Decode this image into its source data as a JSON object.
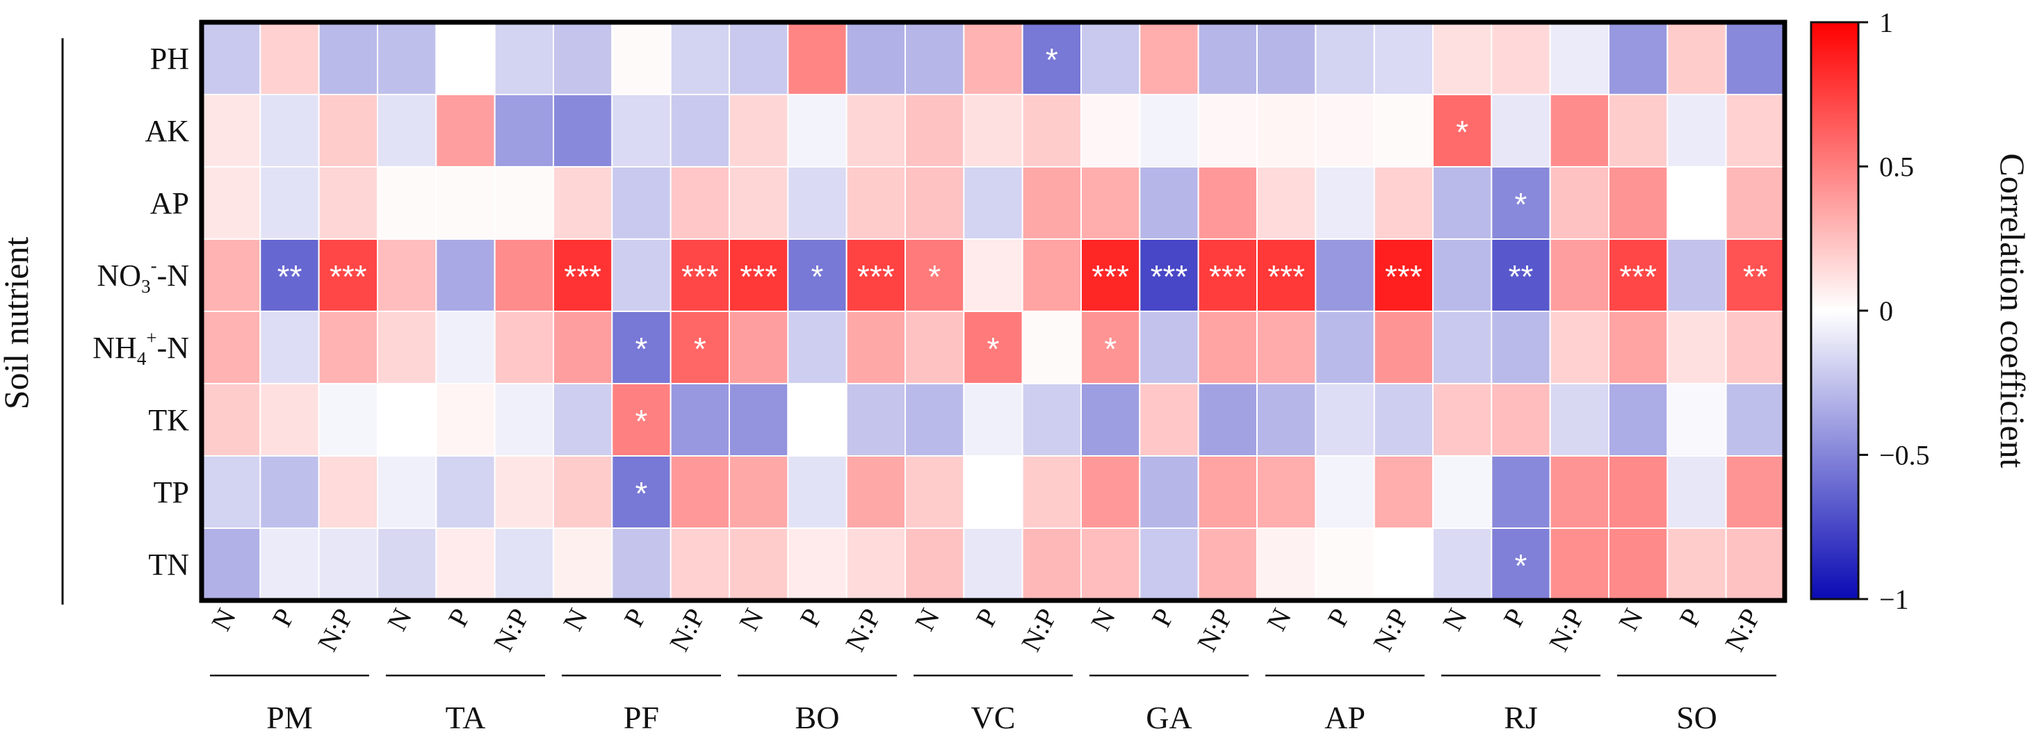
{
  "chart_data": {
    "type": "heatmap",
    "ylabel": "Soil nutrient",
    "colorbar_label": "Correlation coefficient",
    "colorbar_ticks": [
      "1",
      "0.5",
      "0",
      "−0.5",
      "−1"
    ],
    "value_range": [
      -1,
      1
    ],
    "colors": {
      "neg": "#0a0ab4",
      "mid": "#ffffff",
      "pos": "#ff0000"
    },
    "rows": [
      "PH",
      "AK",
      "AP",
      "NO3-N",
      "NH4-N",
      "TK",
      "TP",
      "TN"
    ],
    "row_labels_rich": [
      {
        "main": "PH"
      },
      {
        "main": "AK"
      },
      {
        "main": "AP"
      },
      {
        "main": "NO",
        "sub": "3",
        "sup": "-",
        "tail": "-N"
      },
      {
        "main": "NH",
        "sub": "4",
        "sup": "+",
        "tail": "-N"
      },
      {
        "main": "TK"
      },
      {
        "main": "TP"
      },
      {
        "main": "TN"
      }
    ],
    "groups": [
      "PM",
      "TA",
      "PF",
      "BO",
      "VC",
      "GA",
      "AP",
      "RJ",
      "SO"
    ],
    "columns": [
      "N",
      "P",
      "N:P"
    ],
    "values": [
      [
        -0.22,
        0.18,
        -0.28,
        -0.26,
        0.0,
        -0.18,
        -0.24,
        0.02,
        -0.18,
        -0.22,
        0.48,
        -0.32,
        -0.3,
        0.3,
        -0.55,
        -0.22,
        0.32,
        -0.3,
        -0.3,
        -0.18,
        -0.15,
        0.12,
        0.15,
        -0.08,
        -0.42,
        0.2,
        -0.48
      ],
      [
        0.1,
        -0.12,
        0.2,
        -0.12,
        0.38,
        -0.4,
        -0.48,
        -0.15,
        -0.22,
        0.16,
        -0.05,
        0.16,
        0.24,
        0.12,
        0.2,
        0.03,
        -0.05,
        0.03,
        0.04,
        0.03,
        0.02,
        0.58,
        -0.1,
        0.45,
        0.2,
        -0.08,
        0.18
      ],
      [
        0.1,
        -0.12,
        0.16,
        0.02,
        0.02,
        0.02,
        0.16,
        -0.22,
        0.22,
        0.16,
        -0.15,
        0.2,
        0.24,
        -0.18,
        0.34,
        0.32,
        -0.3,
        0.4,
        0.14,
        -0.08,
        0.18,
        -0.28,
        -0.48,
        0.24,
        0.42,
        0.0,
        0.28
      ],
      [
        0.3,
        -0.62,
        0.72,
        0.26,
        -0.35,
        0.45,
        0.8,
        -0.2,
        0.72,
        0.78,
        -0.55,
        0.74,
        0.52,
        0.08,
        0.36,
        0.85,
        -0.75,
        0.76,
        0.78,
        -0.42,
        0.88,
        -0.28,
        -0.68,
        0.38,
        0.72,
        -0.25,
        0.68
      ],
      [
        0.3,
        -0.14,
        0.3,
        0.16,
        -0.06,
        0.22,
        0.38,
        -0.55,
        0.6,
        0.38,
        -0.2,
        0.34,
        0.24,
        0.52,
        0.02,
        0.42,
        -0.25,
        0.36,
        0.33,
        -0.28,
        0.42,
        -0.22,
        -0.28,
        0.18,
        0.36,
        0.12,
        0.22
      ],
      [
        0.2,
        0.12,
        -0.04,
        0.0,
        0.04,
        -0.06,
        -0.2,
        0.5,
        -0.42,
        -0.44,
        0.0,
        -0.24,
        -0.28,
        -0.06,
        -0.2,
        -0.4,
        0.22,
        -0.38,
        -0.3,
        -0.14,
        -0.2,
        0.22,
        0.26,
        -0.16,
        -0.34,
        -0.03,
        -0.26
      ],
      [
        -0.18,
        -0.26,
        0.14,
        -0.06,
        -0.18,
        0.1,
        0.2,
        -0.55,
        0.4,
        0.34,
        -0.12,
        0.34,
        0.2,
        0.0,
        0.2,
        0.4,
        -0.3,
        0.36,
        0.32,
        -0.05,
        0.32,
        -0.04,
        -0.48,
        0.42,
        0.46,
        -0.1,
        0.42
      ],
      [
        -0.32,
        -0.08,
        -0.1,
        -0.16,
        0.08,
        -0.12,
        0.06,
        -0.24,
        0.18,
        0.2,
        0.08,
        0.14,
        0.24,
        -0.1,
        0.28,
        0.26,
        -0.22,
        0.3,
        0.05,
        0.02,
        0.0,
        -0.15,
        -0.52,
        0.44,
        0.46,
        0.2,
        0.24
      ]
    ],
    "significance": [
      [
        "",
        "",
        "",
        "",
        "",
        "",
        "",
        "",
        "",
        "",
        "",
        "",
        "",
        "",
        "*",
        "",
        "",
        "",
        "",
        "",
        "",
        "",
        "",
        "",
        "",
        "",
        ""
      ],
      [
        "",
        "",
        "",
        "",
        "",
        "",
        "",
        "",
        "",
        "",
        "",
        "",
        "",
        "",
        "",
        "",
        "",
        "",
        "",
        "",
        "",
        "*",
        "",
        "",
        "",
        "",
        ""
      ],
      [
        "",
        "",
        "",
        "",
        "",
        "",
        "",
        "",
        "",
        "",
        "",
        "",
        "",
        "",
        "",
        "",
        "",
        "",
        "",
        "",
        "",
        "",
        "*",
        "",
        "",
        "",
        ""
      ],
      [
        "",
        "**",
        "***",
        "",
        "",
        "",
        "***",
        "",
        "***",
        "***",
        "*",
        "***",
        "*",
        "",
        "",
        "***",
        "***",
        "***",
        "***",
        "",
        "***",
        "",
        "**",
        "",
        "***",
        "",
        "**"
      ],
      [
        "",
        "",
        "",
        "",
        "",
        "",
        "",
        "*",
        "*",
        "",
        "",
        "",
        "",
        "*",
        "",
        "*",
        "",
        "",
        "",
        "",
        "",
        "",
        "",
        "",
        "",
        "",
        ""
      ],
      [
        "",
        "",
        "",
        "",
        "",
        "",
        "",
        "*",
        "",
        "",
        "",
        "",
        "",
        "",
        "",
        "",
        "",
        "",
        "",
        "",
        "",
        "",
        "",
        "",
        "",
        "",
        ""
      ],
      [
        "",
        "",
        "",
        "",
        "",
        "",
        "",
        "*",
        "",
        "",
        "",
        "",
        "",
        "",
        "",
        "",
        "",
        "",
        "",
        "",
        "",
        "",
        "",
        "",
        "",
        "",
        ""
      ],
      [
        "",
        "",
        "",
        "",
        "",
        "",
        "",
        "",
        "",
        "",
        "",
        "",
        "",
        "",
        "",
        "",
        "",
        "",
        "",
        "",
        "",
        "",
        "*",
        "",
        "",
        "",
        ""
      ]
    ]
  }
}
